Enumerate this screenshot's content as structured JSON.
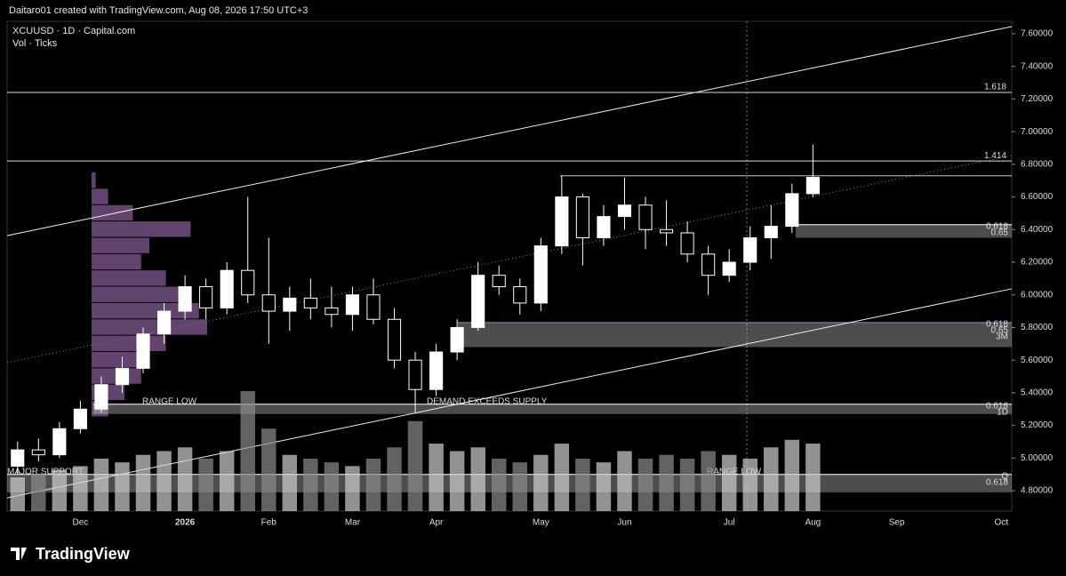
{
  "header": "Daitaro01 created with TradingView.com, Aug 08, 2026 17:50 UTC+3",
  "brand": "TradingView",
  "chart_data": {
    "type": "candlestick",
    "symbol": "XCUUSD · 1D · Capital.com",
    "indicator": "Vol · Ticks",
    "categories": [
      null,
      null,
      null,
      "Dec",
      null,
      null,
      null,
      null,
      "2026",
      null,
      null,
      null,
      "Feb",
      null,
      null,
      null,
      "Mar",
      null,
      null,
      null,
      "Apr",
      null,
      null,
      null,
      null,
      "May",
      null,
      null,
      null,
      "Jun",
      null,
      null,
      null,
      null,
      "Jul",
      null,
      null,
      null,
      "Aug",
      null,
      null,
      null,
      "Sep",
      null,
      null,
      null,
      null,
      "Oct"
    ],
    "open": [
      4.95,
      5.05,
      5.02,
      5.18,
      5.3,
      5.45,
      5.55,
      5.76,
      5.9,
      6.05,
      5.92,
      6.15,
      6.0,
      5.9,
      5.98,
      5.92,
      5.88,
      6.0,
      5.85,
      5.6,
      5.42,
      5.65,
      5.8,
      6.12,
      6.05,
      5.95,
      6.3,
      6.6,
      6.35,
      6.48,
      6.55,
      6.4,
      6.38,
      6.25,
      6.12,
      6.2,
      6.35,
      6.42,
      6.62,
      null,
      null,
      null,
      null,
      null,
      null,
      null,
      null,
      null
    ],
    "high": [
      5.1,
      5.12,
      5.22,
      5.35,
      5.5,
      5.62,
      5.8,
      5.95,
      6.12,
      6.1,
      6.2,
      6.6,
      6.35,
      6.05,
      6.1,
      6.05,
      6.05,
      6.1,
      5.92,
      5.65,
      5.7,
      5.85,
      6.2,
      6.18,
      6.1,
      6.35,
      6.73,
      6.62,
      6.55,
      6.72,
      6.6,
      6.58,
      6.45,
      6.3,
      6.28,
      6.42,
      6.55,
      6.68,
      6.92,
      null,
      null,
      null,
      null,
      null,
      null,
      null,
      null,
      null
    ],
    "low": [
      4.9,
      4.98,
      5.0,
      5.15,
      5.28,
      5.4,
      5.52,
      5.7,
      5.85,
      5.85,
      5.88,
      5.95,
      5.7,
      5.78,
      5.85,
      5.8,
      5.78,
      5.82,
      5.55,
      5.28,
      5.38,
      5.6,
      5.78,
      6.0,
      5.88,
      5.9,
      6.25,
      6.18,
      6.3,
      6.4,
      6.28,
      6.3,
      6.2,
      6.0,
      6.08,
      6.15,
      6.22,
      6.38,
      6.6,
      null,
      null,
      null,
      null,
      null,
      null,
      null,
      null,
      null
    ],
    "close": [
      5.05,
      5.02,
      5.18,
      5.3,
      5.45,
      5.55,
      5.76,
      5.9,
      6.05,
      5.92,
      6.15,
      6.0,
      5.9,
      5.98,
      5.92,
      5.88,
      6.0,
      5.85,
      5.6,
      5.42,
      5.65,
      5.8,
      6.12,
      6.05,
      5.95,
      6.3,
      6.6,
      6.35,
      6.48,
      6.55,
      6.4,
      6.38,
      6.25,
      6.12,
      6.2,
      6.35,
      6.42,
      6.62,
      6.72,
      null,
      null,
      null,
      null,
      null,
      null,
      null,
      null,
      null
    ],
    "volume": [
      45,
      50,
      55,
      60,
      70,
      65,
      75,
      80,
      85,
      70,
      80,
      160,
      110,
      75,
      70,
      65,
      60,
      70,
      85,
      120,
      90,
      80,
      85,
      70,
      65,
      75,
      90,
      70,
      65,
      80,
      70,
      75,
      70,
      80,
      75,
      70,
      85,
      95,
      90,
      null,
      null,
      null,
      null,
      null,
      null,
      null,
      null,
      null
    ],
    "up_color": "#ffffff",
    "down_color": "#000000",
    "wick_color": "#ffffff",
    "volume_color": "#8c8c8c",
    "ylim": [
      4.675,
      7.676
    ],
    "yticks": [
      {
        "value": 4.8,
        "label": "4.80000"
      },
      {
        "value": 5.0,
        "label": "5.00000"
      },
      {
        "value": 5.2,
        "label": "5.20000"
      },
      {
        "value": 5.4,
        "label": "5.40000"
      },
      {
        "value": 5.6,
        "label": "5.60000"
      },
      {
        "value": 5.8,
        "label": "5.80000"
      },
      {
        "value": 6.0,
        "label": "6.00000"
      },
      {
        "value": 6.2,
        "label": "6.20000"
      },
      {
        "value": 6.4,
        "label": "6.40000"
      },
      {
        "value": 6.6,
        "label": "6.60000"
      },
      {
        "value": 6.8,
        "label": "6.80000"
      },
      {
        "value": 7.0,
        "label": "7.00000"
      },
      {
        "value": 7.2,
        "label": "7.20000"
      },
      {
        "value": 7.4,
        "label": "7.40000"
      },
      {
        "value": 7.6,
        "label": "7.60000"
      }
    ],
    "levels": [
      {
        "label": "1.618",
        "value": 7.24
      },
      {
        "label": "1.414",
        "value": 6.82
      }
    ],
    "resistance": {
      "value": 6.73,
      "color": "#e0c97a"
    },
    "channel_lines": [
      {
        "start": 6.363,
        "end": 7.644,
        "style": "solid"
      },
      {
        "start": 4.756,
        "end": 6.037,
        "style": "solid"
      },
      {
        "start": 5.585,
        "end": 6.854,
        "style": "dotted"
      }
    ],
    "zones": [
      {
        "top": 6.43,
        "bottom": 6.35,
        "labels": [
          "0.618",
          "0.65"
        ],
        "notes": []
      },
      {
        "top": 5.83,
        "bottom": 5.68,
        "labels": [
          "0.618",
          "0.65",
          "3M"
        ],
        "notes": []
      },
      {
        "top": 5.33,
        "bottom": 5.27,
        "labels": [
          "0.618",
          "1D"
        ],
        "notes": [
          "RANGE LOW",
          "DEMAND EXCEEDS SUPPLY"
        ]
      },
      {
        "top": 4.9,
        "bottom": 4.79,
        "labels": [
          "Q",
          "0.618"
        ],
        "notes": [
          "MAJOR SUPPORT",
          "RANGE LOW"
        ]
      }
    ],
    "volume_profile": {
      "prices": [
        5.3,
        5.4,
        5.5,
        5.6,
        5.7,
        5.8,
        5.9,
        6.0,
        6.1,
        6.2,
        6.3,
        6.4,
        6.5,
        6.6,
        6.7
      ],
      "values": [
        20,
        40,
        60,
        70,
        90,
        140,
        130,
        110,
        90,
        60,
        70,
        120,
        50,
        20,
        5
      ],
      "color": "#b07cc6"
    }
  }
}
